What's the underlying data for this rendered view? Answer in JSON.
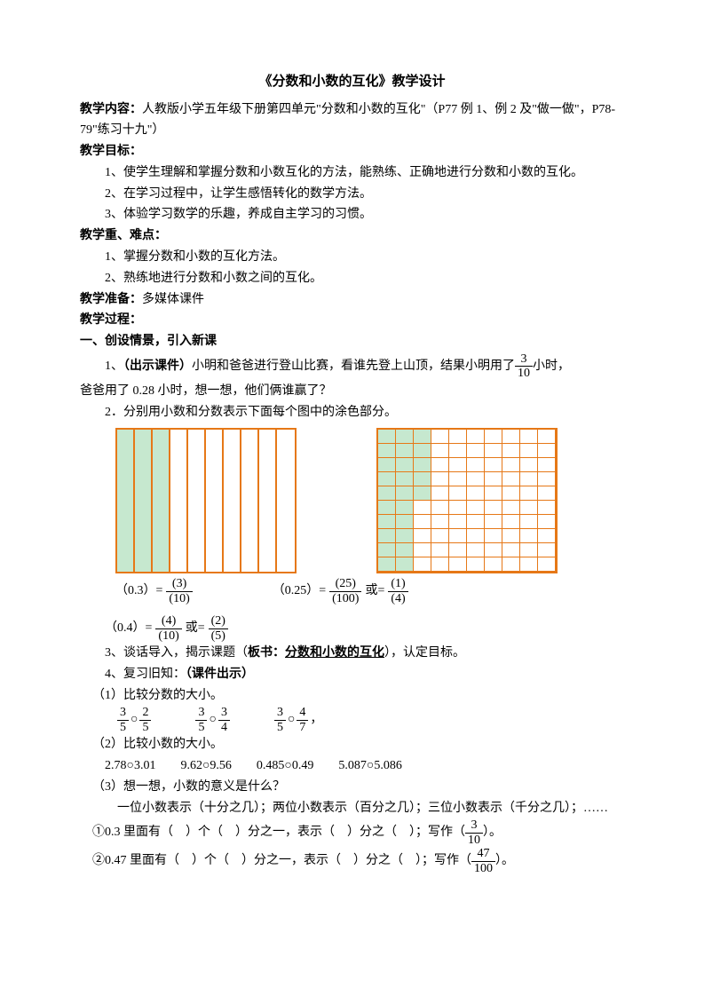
{
  "title": "《分数和小数的互化》教学设计",
  "sec_content_label": "教学内容：",
  "sec_content_text": "人教版小学五年级下册第四单元\"分数和小数的互化\"（P77 例 1、例 2 及\"做一做\"，P78-79\"练习十九\"）",
  "sec_obj_label": "教学目标：",
  "obj1": "1、使学生理解和掌握分数和小数互化的方法，能熟练、正确地进行分数和小数的互化。",
  "obj2": "2、在学习过程中，让学生感悟转化的数学方法。",
  "obj3": "3、体验学习数学的乐趣，养成自主学习的习惯。",
  "sec_keydiff_label": "教学重、难点：",
  "kd1": "1、掌握分数和小数的互化方法。",
  "kd2": "2、熟练地进行分数和小数之间的互化。",
  "sec_prep_label": "教学准备：",
  "sec_prep_text": "多媒体课件",
  "sec_proc_label": "教学过程：",
  "sec_part1": "一、创设情景，引入新课",
  "item1_pre": "1、",
  "item1_show": "（出示课件）",
  "item1_text_a": "小明和爸爸进行登山比赛，看谁先登上山顶，结果小明用了",
  "item1_frac": {
    "num": "3",
    "den": "10"
  },
  "item1_text_b": "小时，",
  "item1_line2": "爸爸用了 0.28 小时，想一想，他们俩谁赢了？",
  "item2": "2．分别用小数和分数表示下面每个图中的涂色部分。",
  "gridA": {
    "cols": 10,
    "shaded": 3,
    "border": "#e67817",
    "fill": "#c6e8cf"
  },
  "gridB": {
    "cols": 10,
    "rows": 10,
    "shadedCols": 2,
    "shadedExtraCells": 5,
    "border": "#e67817",
    "fill": "#c6e8cf"
  },
  "eqA_left": "（0.3）=",
  "eqA_frac": {
    "num": "(3)",
    "den": "(10)"
  },
  "eqB_left": "（0.25）=",
  "eqB_frac1": {
    "num": "(25)",
    "den": "(100)"
  },
  "eqB_or": "或=",
  "eqB_frac2": {
    "num": "(1)",
    "den": "(4)"
  },
  "eqC_left": "（0.4）=",
  "eqC_frac1": {
    "num": "(4)",
    "den": "(10)"
  },
  "eqC_or": "或=",
  "eqC_frac2": {
    "num": "(2)",
    "den": "(5)"
  },
  "item3_pre": "3、谈话导入，揭示课题（",
  "item3_bk": "板书：",
  "item3_ul": "分数和小数的互化",
  "item3_post": "），认定目标。",
  "item4_pre": "4、复习旧知：",
  "item4_show": "（课件出示）",
  "s1": "（1）比较分数的大小。",
  "cmp": [
    {
      "a": {
        "num": "3",
        "den": "5"
      },
      "b": {
        "num": "2",
        "den": "5"
      }
    },
    {
      "a": {
        "num": "3",
        "den": "5"
      },
      "b": {
        "num": "3",
        "den": "4"
      }
    },
    {
      "a": {
        "num": "3",
        "den": "5"
      },
      "b": {
        "num": "4",
        "den": "7"
      }
    }
  ],
  "cmp_sep": "○",
  "cmp_tail": "，",
  "s2": "（2）比较小数的大小。",
  "s2_items": "2.78○3.01  9.62○9.56  0.485○0.49  5.087○5.086",
  "s3": "（3）想一想，小数的意义是什么？",
  "s3_line": "一位小数表示（十分之几）；两位小数表示（百分之几）；三位小数表示（千分之几）；……",
  "q1_pre": "①0.3 里面有（ ）个（ ）分之一，表示（ ）分之（ ）；写作（",
  "q1_frac": {
    "num": "3",
    "den": "10"
  },
  "q1_post": "）。",
  "q2_pre": "②0.47 里面有（ ）个（ ）分之一，表示（ ）分之（ ）；写作（",
  "q2_frac": {
    "num": "47",
    "den": "100"
  },
  "q2_post": "）。"
}
